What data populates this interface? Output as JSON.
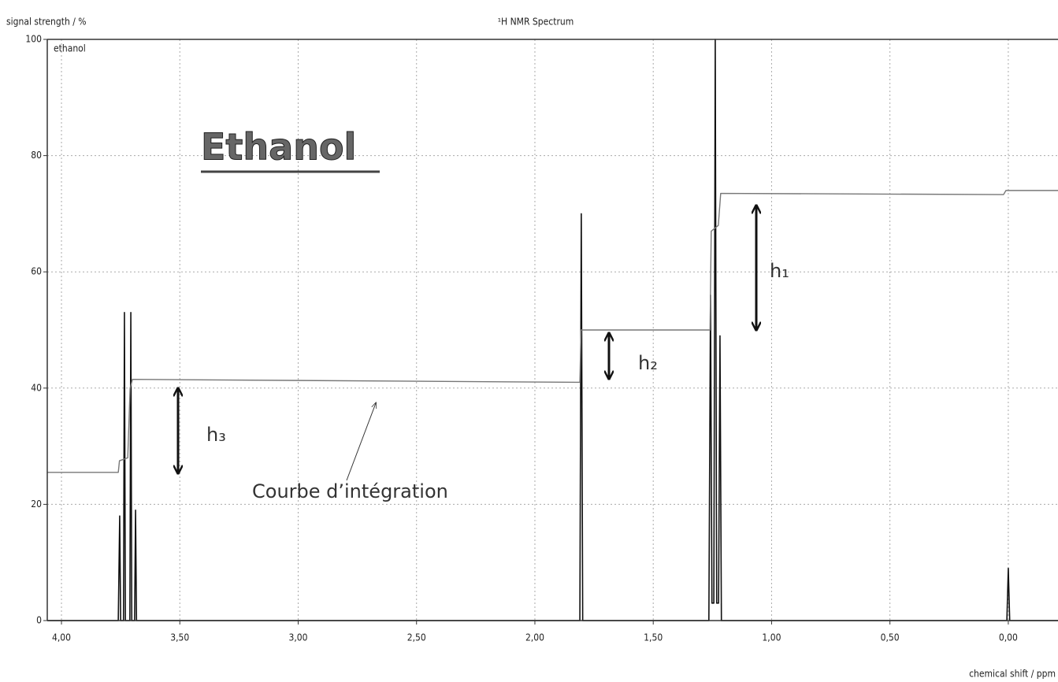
{
  "chart_data": {
    "type": "line",
    "title": "¹H NMR Spectrum",
    "subtitle": "ethanol",
    "y_label": "signal strength / %",
    "x_label": "chemical shift / ppm",
    "xlim": [
      4.06,
      -0.21
    ],
    "ylim": [
      0,
      100
    ],
    "xticks": [
      {
        "value": 4,
        "label": "4,00"
      },
      {
        "value": 3.5,
        "label": "3,50"
      },
      {
        "value": 3,
        "label": "3,00"
      },
      {
        "value": 2.5,
        "label": "2,50"
      },
      {
        "value": 2,
        "label": "2,00"
      },
      {
        "value": 1.5,
        "label": "1,50"
      },
      {
        "value": 1,
        "label": "1,00"
      },
      {
        "value": 0.5,
        "label": "0,50"
      },
      {
        "value": 0,
        "label": "0,00"
      }
    ],
    "yticks": [
      0,
      20,
      40,
      60,
      80,
      100
    ],
    "grid": true,
    "series": [
      {
        "name": "spectrum",
        "color": "#111111",
        "x": [
          4.06,
          3.76,
          3.754,
          3.75,
          3.738,
          3.734,
          3.73,
          3.711,
          3.707,
          3.703,
          3.691,
          3.687,
          3.683,
          1.81,
          1.804,
          1.798,
          1.265,
          1.258,
          1.252,
          1.244,
          1.238,
          1.232,
          1.224,
          1.218,
          1.212,
          0.006,
          0,
          -0.006,
          -0.21
        ],
        "values": [
          0,
          0,
          18,
          0,
          0,
          53,
          0,
          0,
          53,
          0,
          0,
          19,
          0,
          0,
          70,
          0,
          0,
          56,
          3,
          3,
          100,
          3,
          3,
          49,
          0,
          0,
          9,
          0,
          0
        ]
      },
      {
        "name": "Courbe d'intégration",
        "color": "#777777",
        "x": [
          4.06,
          3.76,
          3.755,
          3.72,
          3.71,
          3.7,
          1.81,
          1.805,
          1.26,
          1.255,
          1.225,
          1.215,
          0.02,
          0.01,
          -0.21
        ],
        "values": [
          25.5,
          25.5,
          27.5,
          28,
          40,
          41.5,
          41,
          50,
          50,
          67,
          68,
          73.5,
          73.3,
          74,
          74
        ]
      }
    ],
    "annotations": [
      "Ethanol",
      "h₁",
      "h₂",
      "h₃",
      "Courbe d’intégration"
    ]
  }
}
